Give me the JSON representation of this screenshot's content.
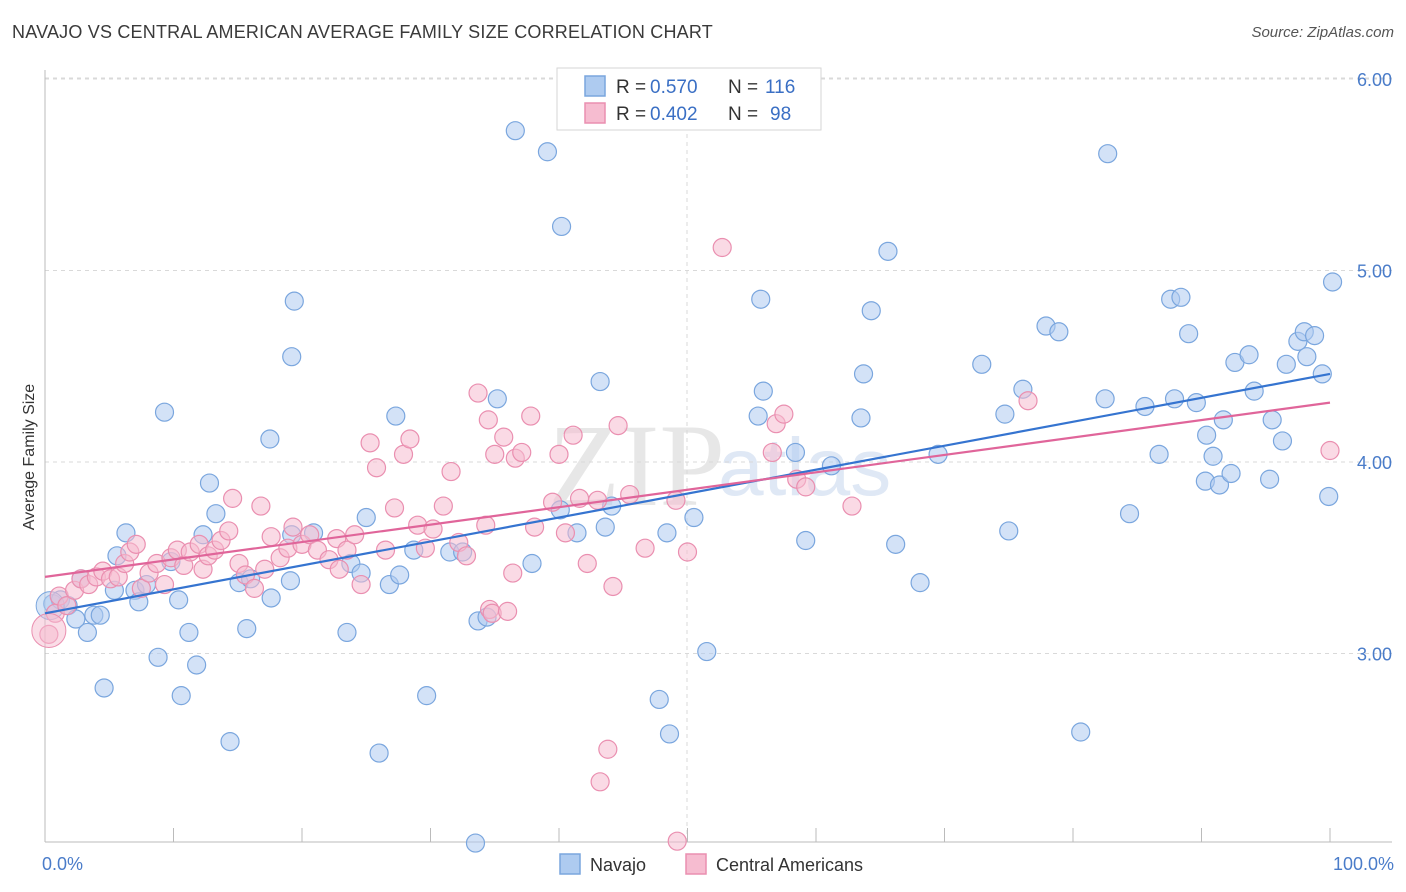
{
  "title": "NAVAJO VS CENTRAL AMERICAN AVERAGE FAMILY SIZE CORRELATION CHART",
  "source": "Source: ZipAtlas.com",
  "watermark": {
    "zip": "ZIP",
    "atlas": "atlas"
  },
  "legend": {
    "items": [
      {
        "r_label": "R =",
        "r_value": "0.570",
        "n_label": "N =",
        "n_value": "116"
      },
      {
        "r_label": "R =",
        "r_value": "0.402",
        "n_label": "N =",
        "n_value": "98"
      }
    ]
  },
  "bottom_legend": [
    "Navajo",
    "Central Americans"
  ],
  "colors": {
    "navajo_fill": "#aecbf0",
    "navajo_stroke": "#7aa6de",
    "navajo_line": "#3574d0",
    "central_fill": "#f6bcd0",
    "central_stroke": "#ea8fb0",
    "central_line": "#e0659a",
    "grid": "#d9d9d9",
    "tick_text": "#4a7cc9"
  },
  "chart_data": {
    "type": "scatter",
    "title": "NAVAJO VS CENTRAL AMERICAN AVERAGE FAMILY SIZE CORRELATION CHART",
    "xlabel": "",
    "ylabel": "Average Family Size",
    "x_tick_labels": [
      "0.0%",
      "100.0%"
    ],
    "y_ticks": [
      3.0,
      4.0,
      5.0,
      6.0
    ],
    "y_tick_labels": [
      "3.00",
      "4.00",
      "5.00",
      "6.00"
    ],
    "xlim": [
      0,
      100
    ],
    "ylim": [
      2.05,
      6.1
    ],
    "grid": true,
    "legend_placement": "top-center",
    "series": [
      {
        "name": "Navajo",
        "r": 0.57,
        "n": 116,
        "trend": [
          [
            0,
            3.21
          ],
          [
            100,
            4.46
          ]
        ],
        "points": [
          [
            0.6,
            3.26
          ],
          [
            1.2,
            3.28
          ],
          [
            1.8,
            3.25
          ],
          [
            2.4,
            3.18
          ],
          [
            2.8,
            3.39
          ],
          [
            3.3,
            3.11
          ],
          [
            3.8,
            3.2
          ],
          [
            4.3,
            3.2
          ],
          [
            4.6,
            2.82
          ],
          [
            5.4,
            3.33
          ],
          [
            5.6,
            3.51
          ],
          [
            6.3,
            3.63
          ],
          [
            7.0,
            3.33
          ],
          [
            7.3,
            3.27
          ],
          [
            7.9,
            3.36
          ],
          [
            8.8,
            2.98
          ],
          [
            9.3,
            4.26
          ],
          [
            9.8,
            3.48
          ],
          [
            10.4,
            3.28
          ],
          [
            10.6,
            2.78
          ],
          [
            11.2,
            3.11
          ],
          [
            11.8,
            2.94
          ],
          [
            12.3,
            3.62
          ],
          [
            12.8,
            3.89
          ],
          [
            13.3,
            3.73
          ],
          [
            14.4,
            2.54
          ],
          [
            15.1,
            3.37
          ],
          [
            15.7,
            3.13
          ],
          [
            16.0,
            3.39
          ],
          [
            17.6,
            3.29
          ],
          [
            17.5,
            4.12
          ],
          [
            19.1,
            3.38
          ],
          [
            19.2,
            3.62
          ],
          [
            19.2,
            4.55
          ],
          [
            19.4,
            4.84
          ],
          [
            20.9,
            3.63
          ],
          [
            23.5,
            3.11
          ],
          [
            23.8,
            3.47
          ],
          [
            24.6,
            3.42
          ],
          [
            25.0,
            3.71
          ],
          [
            26.0,
            2.48
          ],
          [
            26.8,
            3.36
          ],
          [
            27.3,
            4.24
          ],
          [
            27.6,
            3.41
          ],
          [
            28.7,
            3.54
          ],
          [
            29.7,
            2.78
          ],
          [
            31.5,
            3.53
          ],
          [
            32.5,
            3.53
          ],
          [
            33.5,
            2.01
          ],
          [
            33.7,
            3.17
          ],
          [
            34.4,
            3.19
          ],
          [
            35.2,
            4.33
          ],
          [
            36.6,
            5.73
          ],
          [
            37.9,
            3.47
          ],
          [
            39.1,
            5.62
          ],
          [
            40.1,
            3.75
          ],
          [
            40.2,
            5.23
          ],
          [
            41.4,
            3.63
          ],
          [
            43.2,
            4.42
          ],
          [
            43.6,
            3.66
          ],
          [
            44.1,
            3.77
          ],
          [
            47.8,
            2.76
          ],
          [
            48.4,
            3.63
          ],
          [
            48.6,
            2.58
          ],
          [
            50.5,
            3.71
          ],
          [
            51.5,
            3.01
          ],
          [
            55.5,
            4.24
          ],
          [
            55.7,
            4.85
          ],
          [
            55.9,
            4.37
          ],
          [
            58.4,
            4.05
          ],
          [
            59.2,
            3.59
          ],
          [
            61.2,
            3.98
          ],
          [
            63.5,
            4.23
          ],
          [
            63.7,
            4.46
          ],
          [
            64.3,
            4.79
          ],
          [
            65.6,
            5.1
          ],
          [
            66.2,
            3.57
          ],
          [
            68.1,
            3.37
          ],
          [
            69.5,
            4.04
          ],
          [
            72.9,
            4.51
          ],
          [
            74.7,
            4.25
          ],
          [
            75.0,
            3.64
          ],
          [
            76.1,
            4.38
          ],
          [
            77.9,
            4.71
          ],
          [
            78.9,
            4.68
          ],
          [
            80.6,
            2.59
          ],
          [
            82.5,
            4.33
          ],
          [
            82.7,
            5.61
          ],
          [
            84.4,
            3.73
          ],
          [
            85.6,
            4.29
          ],
          [
            86.7,
            4.04
          ],
          [
            87.6,
            4.85
          ],
          [
            87.9,
            4.33
          ],
          [
            88.4,
            4.86
          ],
          [
            89.0,
            4.67
          ],
          [
            89.6,
            4.31
          ],
          [
            90.3,
            3.9
          ],
          [
            90.4,
            4.14
          ],
          [
            90.9,
            4.03
          ],
          [
            91.4,
            3.88
          ],
          [
            91.7,
            4.22
          ],
          [
            92.6,
            4.52
          ],
          [
            93.7,
            4.56
          ],
          [
            94.1,
            4.37
          ],
          [
            95.3,
            3.91
          ],
          [
            95.5,
            4.22
          ],
          [
            96.3,
            4.11
          ],
          [
            96.6,
            4.51
          ],
          [
            97.5,
            4.63
          ],
          [
            98.0,
            4.68
          ],
          [
            98.2,
            4.55
          ],
          [
            98.8,
            4.66
          ],
          [
            99.4,
            4.46
          ],
          [
            99.9,
            3.82
          ],
          [
            100.2,
            4.94
          ],
          [
            92.3,
            3.94
          ]
        ]
      },
      {
        "name": "Central Americans",
        "r": 0.402,
        "n": 98,
        "trend": [
          [
            0,
            3.4
          ],
          [
            100,
            4.31
          ]
        ],
        "points": [
          [
            0.3,
            3.1
          ],
          [
            0.8,
            3.21
          ],
          [
            1.1,
            3.3
          ],
          [
            1.7,
            3.25
          ],
          [
            2.3,
            3.33
          ],
          [
            2.8,
            3.39
          ],
          [
            3.4,
            3.36
          ],
          [
            4.0,
            3.4
          ],
          [
            4.5,
            3.43
          ],
          [
            5.1,
            3.39
          ],
          [
            5.7,
            3.4
          ],
          [
            6.2,
            3.47
          ],
          [
            6.6,
            3.53
          ],
          [
            7.1,
            3.57
          ],
          [
            7.5,
            3.34
          ],
          [
            8.1,
            3.42
          ],
          [
            8.7,
            3.47
          ],
          [
            9.3,
            3.36
          ],
          [
            9.8,
            3.5
          ],
          [
            10.3,
            3.54
          ],
          [
            10.8,
            3.46
          ],
          [
            11.3,
            3.53
          ],
          [
            12.0,
            3.57
          ],
          [
            12.3,
            3.44
          ],
          [
            12.7,
            3.51
          ],
          [
            13.2,
            3.54
          ],
          [
            13.7,
            3.59
          ],
          [
            14.3,
            3.64
          ],
          [
            14.6,
            3.81
          ],
          [
            15.1,
            3.47
          ],
          [
            15.6,
            3.41
          ],
          [
            16.3,
            3.34
          ],
          [
            16.8,
            3.77
          ],
          [
            17.1,
            3.44
          ],
          [
            17.6,
            3.61
          ],
          [
            18.3,
            3.5
          ],
          [
            18.9,
            3.55
          ],
          [
            19.3,
            3.66
          ],
          [
            20.0,
            3.57
          ],
          [
            20.6,
            3.62
          ],
          [
            21.2,
            3.54
          ],
          [
            22.1,
            3.49
          ],
          [
            22.7,
            3.6
          ],
          [
            22.9,
            3.44
          ],
          [
            23.5,
            3.54
          ],
          [
            24.1,
            3.62
          ],
          [
            24.6,
            3.36
          ],
          [
            25.3,
            4.1
          ],
          [
            25.8,
            3.97
          ],
          [
            26.5,
            3.54
          ],
          [
            27.2,
            3.76
          ],
          [
            27.9,
            4.04
          ],
          [
            28.4,
            4.12
          ],
          [
            29.0,
            3.67
          ],
          [
            29.6,
            3.55
          ],
          [
            30.2,
            3.65
          ],
          [
            31.0,
            3.77
          ],
          [
            31.6,
            3.95
          ],
          [
            32.2,
            3.58
          ],
          [
            32.8,
            3.51
          ],
          [
            33.7,
            4.36
          ],
          [
            34.3,
            3.67
          ],
          [
            34.5,
            4.22
          ],
          [
            35.0,
            4.04
          ],
          [
            35.7,
            4.13
          ],
          [
            36.4,
            3.42
          ],
          [
            36.6,
            4.02
          ],
          [
            37.1,
            4.05
          ],
          [
            37.8,
            4.24
          ],
          [
            38.1,
            3.66
          ],
          [
            39.5,
            3.79
          ],
          [
            40.0,
            4.04
          ],
          [
            40.5,
            3.63
          ],
          [
            41.1,
            4.14
          ],
          [
            41.6,
            3.81
          ],
          [
            42.2,
            3.47
          ],
          [
            43.0,
            3.8
          ],
          [
            44.2,
            3.35
          ],
          [
            44.6,
            4.19
          ],
          [
            45.5,
            3.83
          ],
          [
            46.7,
            3.55
          ],
          [
            49.1,
            3.8
          ],
          [
            50.0,
            3.53
          ],
          [
            52.7,
            5.12
          ],
          [
            56.6,
            4.05
          ],
          [
            56.9,
            4.2
          ],
          [
            57.5,
            4.25
          ],
          [
            58.5,
            3.91
          ],
          [
            59.2,
            3.87
          ],
          [
            62.8,
            3.77
          ],
          [
            76.5,
            4.32
          ],
          [
            100.0,
            4.06
          ],
          [
            34.6,
            3.23
          ],
          [
            43.8,
            2.5
          ],
          [
            43.2,
            2.33
          ],
          [
            49.2,
            2.02
          ],
          [
            34.8,
            3.21
          ],
          [
            36.0,
            3.22
          ]
        ]
      }
    ]
  }
}
